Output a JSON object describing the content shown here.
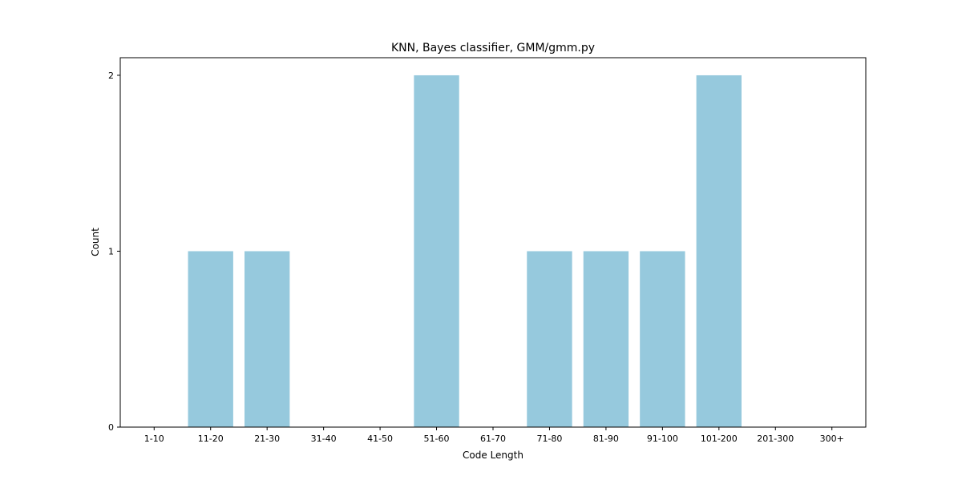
{
  "chart_data": {
    "type": "bar",
    "title": "KNN, Bayes classifier, GMM/gmm.py",
    "xlabel": "Code Length",
    "ylabel": "Count",
    "categories": [
      "1-10",
      "11-20",
      "21-30",
      "31-40",
      "41-50",
      "51-60",
      "61-70",
      "71-80",
      "81-90",
      "91-100",
      "101-200",
      "201-300",
      "300+"
    ],
    "values": [
      0,
      1,
      1,
      0,
      0,
      2,
      0,
      1,
      1,
      1,
      2,
      0,
      0
    ],
    "yticks": [
      "0",
      "1",
      "2"
    ],
    "ylim": [
      0,
      2.1
    ],
    "grid": false,
    "bar_color": "#96c9dd"
  }
}
